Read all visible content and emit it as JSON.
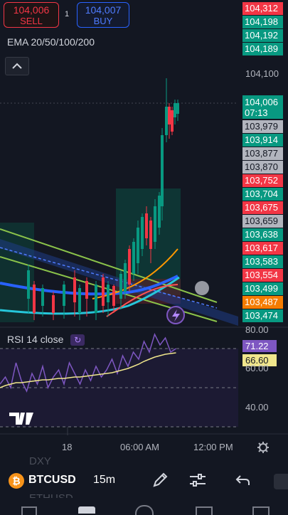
{
  "trade": {
    "sell_price": "104,006",
    "sell_label": "SELL",
    "spread": "1",
    "buy_price": "104,007",
    "buy_label": "BUY"
  },
  "indicator_label": "EMA 20/50/100/200",
  "price_axis": {
    "tags": [
      {
        "text": "104,312",
        "color": "#f23645"
      },
      {
        "text": "104,198",
        "color": "#089981"
      },
      {
        "text": "104,192",
        "color": "#089981"
      },
      {
        "text": "104,189",
        "color": "#089981"
      },
      {
        "text": "103,979",
        "color": "#b2b5be"
      },
      {
        "text": "103,914",
        "color": "#089981"
      },
      {
        "text": "103,877",
        "color": "#b2b5be"
      },
      {
        "text": "103,870",
        "color": "#b2b5be"
      },
      {
        "text": "103,752",
        "color": "#f23645"
      },
      {
        "text": "103,704",
        "color": "#089981"
      },
      {
        "text": "103,675",
        "color": "#f23645"
      },
      {
        "text": "103,659",
        "color": "#b2b5be"
      },
      {
        "text": "103,638",
        "color": "#089981"
      },
      {
        "text": "103,617",
        "color": "#f23645"
      },
      {
        "text": "103,583",
        "color": "#089981"
      },
      {
        "text": "103,554",
        "color": "#f23645"
      },
      {
        "text": "103,499",
        "color": "#089981"
      },
      {
        "text": "103,487",
        "color": "#f57c00"
      },
      {
        "text": "103,474",
        "color": "#089981"
      }
    ],
    "grid_label": "104,100",
    "current_price": "104,006",
    "countdown": "07:13"
  },
  "rsi": {
    "label": "RSI 14 close",
    "value": "71.22",
    "ma_value": "66.60",
    "axis_80": "80.00",
    "axis_60": "60.00",
    "axis_40": "40.00"
  },
  "time_axis": [
    "18",
    "06:00 AM",
    "12:00 PM"
  ],
  "toolbar": {
    "symbol": "BTCUSD",
    "interval": "15m",
    "ghost_top": "DXY",
    "ghost_bottom": "ETHUSD"
  },
  "colors": {
    "up": "#089981",
    "down": "#f23645",
    "rsi_line": "#7e57c2",
    "rsi_ma": "#f0e68c"
  }
}
